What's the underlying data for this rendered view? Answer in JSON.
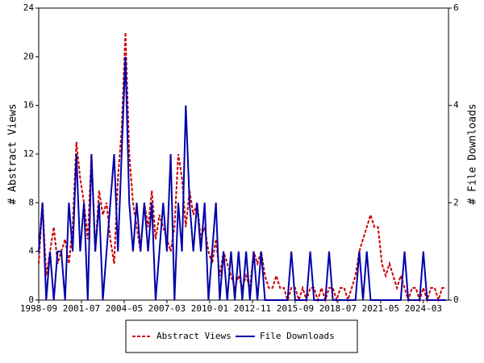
{
  "chart_data": {
    "type": "line",
    "y_label": "# Abstract Views",
    "y2_label": "# File Downloads",
    "x": [
      "1998-09",
      "1998-12",
      "1999-03",
      "1999-06",
      "1999-09",
      "1999-12",
      "2000-03",
      "2000-06",
      "2000-09",
      "2000-12",
      "2001-03",
      "2001-06",
      "2001-09",
      "2001-12",
      "2002-03",
      "2002-06",
      "2002-09",
      "2002-12",
      "2003-03",
      "2003-06",
      "2003-09",
      "2003-12",
      "2004-03",
      "2004-06",
      "2004-09",
      "2004-12",
      "2005-03",
      "2005-06",
      "2005-09",
      "2005-12",
      "2006-03",
      "2006-06",
      "2006-09",
      "2006-12",
      "2007-03",
      "2007-06",
      "2007-09",
      "2007-12",
      "2008-03",
      "2008-06",
      "2008-09",
      "2008-12",
      "2009-03",
      "2009-06",
      "2009-09",
      "2009-12",
      "2010-03",
      "2010-06",
      "2010-09",
      "2010-12",
      "2011-03",
      "2011-06",
      "2011-09",
      "2011-12",
      "2012-03",
      "2012-06",
      "2012-09",
      "2012-12",
      "2013-03",
      "2013-06",
      "2013-09",
      "2013-12",
      "2014-03",
      "2014-06",
      "2014-09",
      "2014-12",
      "2015-03",
      "2015-06",
      "2015-09",
      "2015-12",
      "2016-03",
      "2016-06",
      "2016-09",
      "2016-12",
      "2017-03",
      "2017-06",
      "2017-09",
      "2017-12",
      "2018-03",
      "2018-06",
      "2018-09",
      "2018-12",
      "2019-03",
      "2019-06",
      "2019-09",
      "2019-12",
      "2020-03",
      "2020-06",
      "2020-09",
      "2020-12",
      "2021-03",
      "2021-06",
      "2021-09",
      "2021-12",
      "2022-03",
      "2022-06",
      "2022-09",
      "2022-12",
      "2023-03",
      "2023-06",
      "2023-09",
      "2023-12",
      "2024-03",
      "2024-06",
      "2024-09",
      "2024-12",
      "2025-03",
      "2025-06",
      "2025-09"
    ],
    "series": [
      {
        "name": "Abstract Views",
        "color": "#cc0000",
        "dash": true,
        "axis": "y",
        "values": [
          3,
          8,
          2,
          4,
          6,
          3,
          4,
          5,
          3,
          6,
          13,
          10,
          8,
          5,
          12,
          4,
          9,
          7,
          8,
          5,
          3,
          10,
          14,
          22,
          12,
          8,
          6,
          4,
          8,
          6,
          9,
          5,
          7,
          6,
          5,
          4,
          6,
          12,
          10,
          6,
          9,
          7,
          8,
          5,
          6,
          4,
          3,
          5,
          2,
          4,
          3,
          2,
          1,
          2,
          1,
          2,
          1,
          4,
          3,
          4,
          2,
          1,
          1,
          2,
          1,
          1,
          0,
          1,
          1,
          0,
          1,
          0,
          1,
          1,
          0,
          1,
          0,
          1,
          1,
          0,
          1,
          1,
          0,
          1,
          2,
          4,
          5,
          6,
          7,
          6,
          6,
          3,
          2,
          3,
          2,
          1,
          2,
          1,
          0,
          1,
          1,
          0,
          1,
          0,
          1,
          1,
          0,
          1,
          1
        ]
      },
      {
        "name": "File Downloads",
        "color": "#0000aa",
        "dash": false,
        "axis": "y2",
        "values": [
          1,
          2,
          0,
          1,
          0,
          1,
          1,
          0,
          2,
          1,
          3,
          1,
          2,
          0,
          3,
          1,
          2,
          0,
          1,
          2,
          3,
          1,
          3,
          5,
          2,
          1,
          2,
          1,
          2,
          1,
          2,
          0,
          1,
          2,
          1,
          3,
          0,
          2,
          1,
          4,
          2,
          1,
          2,
          1,
          2,
          0,
          1,
          2,
          0,
          1,
          0,
          1,
          0,
          1,
          0,
          1,
          0,
          1,
          0,
          1,
          0,
          0,
          0,
          0,
          0,
          0,
          0,
          1,
          0,
          0,
          0,
          0,
          1,
          0,
          0,
          0,
          0,
          1,
          0,
          0,
          0,
          0,
          0,
          0,
          0,
          1,
          0,
          1,
          0,
          0,
          0,
          0,
          0,
          0,
          0,
          0,
          0,
          1,
          0,
          0,
          0,
          0,
          1,
          0,
          0,
          0,
          0,
          0,
          0
        ]
      }
    ],
    "xlim": [
      "1998-09",
      "2025-11"
    ],
    "xticks": [
      "1998-09",
      "2001-07",
      "2004-05",
      "2007-03",
      "2010-01",
      "2012-11",
      "2015-09",
      "2018-07",
      "2021-05",
      "2024-03"
    ],
    "ylim": [
      0,
      24
    ],
    "yticks": [
      0,
      4,
      8,
      12,
      16,
      20,
      24
    ],
    "y2lim": [
      0,
      6
    ],
    "y2ticks": [
      0,
      2,
      4,
      6
    ],
    "legend": "bottom"
  }
}
